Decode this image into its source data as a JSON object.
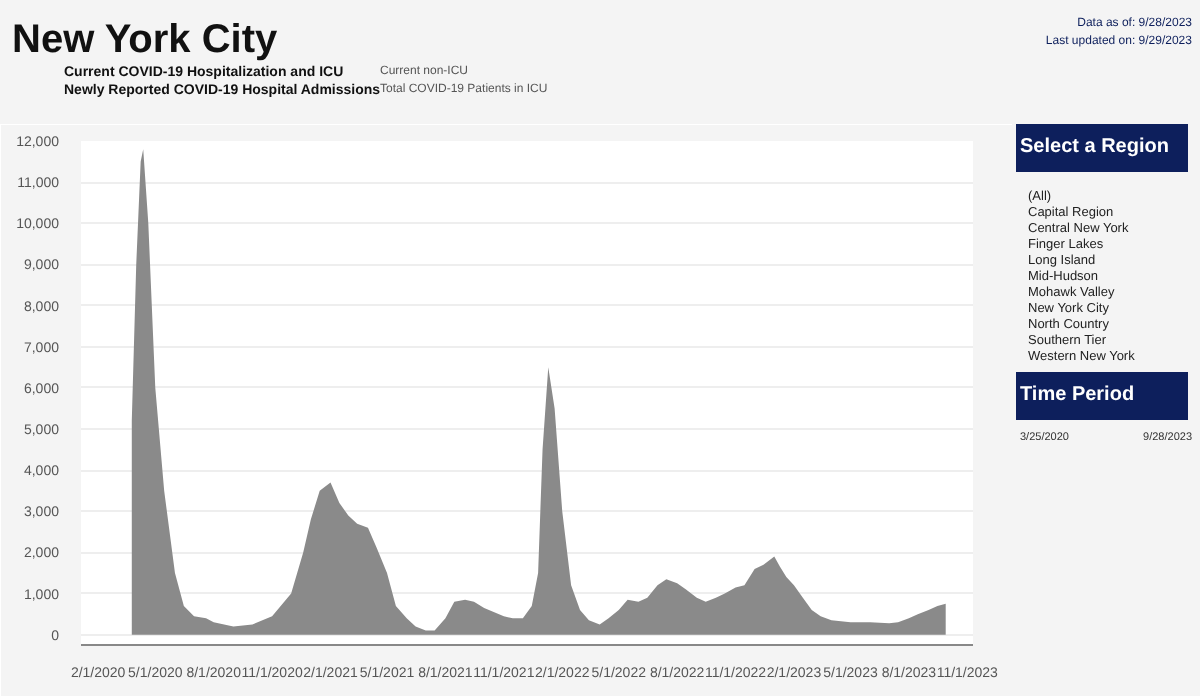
{
  "chart_data": {
    "type": "area",
    "title": "New York City",
    "x": [
      "2020-03-25",
      "2020-04-01",
      "2020-04-08",
      "2020-04-12",
      "2020-04-20",
      "2020-05-01",
      "2020-05-15",
      "2020-06-01",
      "2020-06-15",
      "2020-07-01",
      "2020-07-20",
      "2020-08-01",
      "2020-09-01",
      "2020-10-01",
      "2020-11-01",
      "2020-12-01",
      "2020-12-20",
      "2021-01-01",
      "2021-01-15",
      "2021-02-01",
      "2021-02-15",
      "2021-03-01",
      "2021-03-15",
      "2021-04-01",
      "2021-04-15",
      "2021-05-01",
      "2021-05-15",
      "2021-06-01",
      "2021-06-15",
      "2021-07-01",
      "2021-07-15",
      "2021-08-01",
      "2021-08-15",
      "2021-09-01",
      "2021-09-15",
      "2021-10-01",
      "2021-11-01",
      "2021-11-15",
      "2021-12-01",
      "2021-12-15",
      "2021-12-25",
      "2022-01-01",
      "2022-01-10",
      "2022-01-20",
      "2022-02-01",
      "2022-02-15",
      "2022-03-01",
      "2022-03-15",
      "2022-04-01",
      "2022-04-15",
      "2022-05-01",
      "2022-05-15",
      "2022-06-01",
      "2022-06-15",
      "2022-07-01",
      "2022-07-15",
      "2022-08-01",
      "2022-08-15",
      "2022-09-01",
      "2022-09-15",
      "2022-10-01",
      "2022-10-15",
      "2022-11-01",
      "2022-11-15",
      "2022-12-01",
      "2022-12-15",
      "2023-01-01",
      "2023-01-10",
      "2023-01-20",
      "2023-02-01",
      "2023-02-15",
      "2023-03-01",
      "2023-03-15",
      "2023-04-01",
      "2023-05-01",
      "2023-06-01",
      "2023-07-01",
      "2023-07-15",
      "2023-08-01",
      "2023-08-15",
      "2023-09-01",
      "2023-09-15",
      "2023-09-28"
    ],
    "series": [
      {
        "color": "#8a8a8a",
        "values": [
          5200,
          9000,
          11500,
          11800,
          10000,
          6000,
          3500,
          1500,
          700,
          450,
          400,
          300,
          200,
          250,
          450,
          1000,
          2000,
          2800,
          3500,
          3700,
          3200,
          2900,
          2700,
          2600,
          2100,
          1500,
          700,
          400,
          200,
          100,
          100,
          400,
          800,
          850,
          800,
          650,
          450,
          400,
          400,
          700,
          1500,
          4500,
          6500,
          5500,
          3000,
          1200,
          600,
          350,
          250,
          400,
          600,
          850,
          800,
          900,
          1200,
          1350,
          1250,
          1100,
          900,
          800,
          900,
          1000,
          1150,
          1200,
          1600,
          1700,
          1900,
          1650,
          1400,
          1200,
          900,
          600,
          450,
          350,
          300,
          300,
          280,
          300,
          400,
          500,
          600,
          700,
          750
        ]
      }
    ],
    "xlim": [
      "2020-01-05",
      "2023-11-10"
    ],
    "xticks": [
      {
        "value": "2020-02-01",
        "label": "2/1/2020"
      },
      {
        "value": "2020-05-01",
        "label": "5/1/2020"
      },
      {
        "value": "2020-08-01",
        "label": "8/1/2020"
      },
      {
        "value": "2020-11-01",
        "label": "11/1/2020"
      },
      {
        "value": "2021-02-01",
        "label": "2/1/2021"
      },
      {
        "value": "2021-05-01",
        "label": "5/1/2021"
      },
      {
        "value": "2021-08-01",
        "label": "8/1/2021"
      },
      {
        "value": "2021-11-01",
        "label": "11/1/2021"
      },
      {
        "value": "2022-02-01",
        "label": "2/1/2022"
      },
      {
        "value": "2022-05-01",
        "label": "5/1/2022"
      },
      {
        "value": "2022-08-01",
        "label": "8/1/2022"
      },
      {
        "value": "2022-11-01",
        "label": "11/1/2022"
      },
      {
        "value": "2023-02-01",
        "label": "2/1/2023"
      },
      {
        "value": "2023-05-01",
        "label": "5/1/2023"
      },
      {
        "value": "2023-08-01",
        "label": "8/1/2023"
      },
      {
        "value": "2023-11-01",
        "label": "11/1/2023"
      }
    ],
    "ylim": [
      -250,
      12000
    ],
    "yticks": [
      {
        "value": 0,
        "label": "0"
      },
      {
        "value": 1000,
        "label": "1,000"
      },
      {
        "value": 2000,
        "label": "2,000"
      },
      {
        "value": 3000,
        "label": "3,000"
      },
      {
        "value": 4000,
        "label": "4,000"
      },
      {
        "value": 5000,
        "label": "5,000"
      },
      {
        "value": 6000,
        "label": "6,000"
      },
      {
        "value": 7000,
        "label": "7,000"
      },
      {
        "value": 8000,
        "label": "8,000"
      },
      {
        "value": 9000,
        "label": "9,000"
      },
      {
        "value": 10000,
        "label": "10,000"
      },
      {
        "value": 11000,
        "label": "11,000"
      },
      {
        "value": 12000,
        "label": "12,000"
      }
    ],
    "grid": "y",
    "annotations": [
      "Current COVID-19 Hospitalization and ICU",
      "Newly Reported COVID-19 Hospital Admissions",
      "Current non-ICU",
      "Total COVID-19 Patients in ICU",
      "Data as of: 9/28/2023",
      "Last updated on: 9/29/2023",
      "Select a Region",
      "(All)",
      "Capital Region",
      "Central New York",
      "Finger Lakes",
      "Long Island",
      "Mid-Hudson",
      "Mohawk Valley",
      "New York City",
      "North Country",
      "Southern Tier",
      "Western New York",
      "Time Period",
      "3/25/2020",
      "9/28/2023"
    ]
  }
}
